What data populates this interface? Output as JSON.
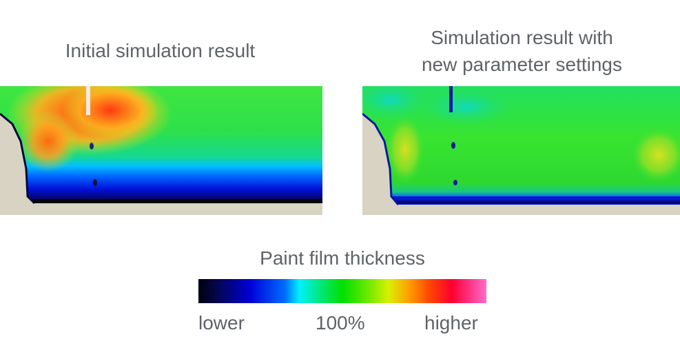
{
  "panels": [
    {
      "title": "Initial simulation result"
    },
    {
      "title_line1": "Simulation result with",
      "title_line2": "new parameter settings"
    }
  ],
  "legend": {
    "title": "Paint film thickness",
    "labels": [
      "lower",
      "100%",
      "higher"
    ],
    "colors": [
      "#000010",
      "#0000d8",
      "#00f0ff",
      "#00e000",
      "#d8f000",
      "#ffa000",
      "#ff0030",
      "#ff6ec8"
    ]
  },
  "colors": {
    "background_body": "#d8d3c2",
    "text": "#5f6368"
  }
}
